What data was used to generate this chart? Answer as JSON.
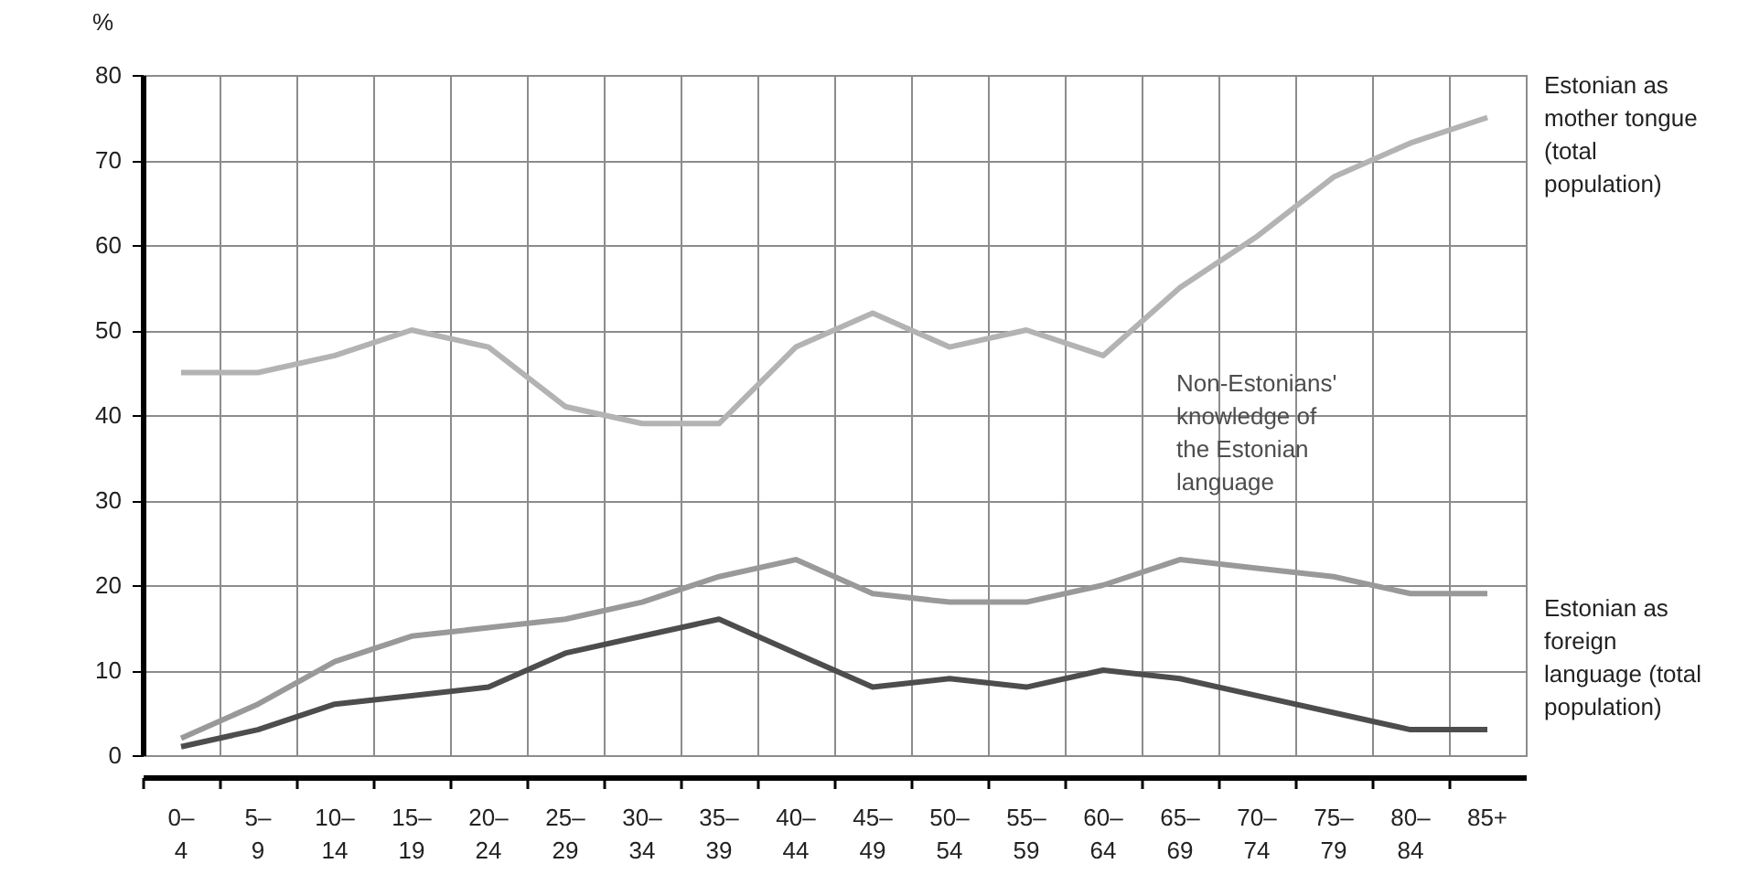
{
  "chart_data": {
    "type": "line",
    "ylabel": "%",
    "categories": [
      "0–4",
      "5–9",
      "10–14",
      "15–19",
      "20–24",
      "25–29",
      "30–34",
      "35–39",
      "40–44",
      "45–49",
      "50–54",
      "55–59",
      "60–64",
      "65–69",
      "70–74",
      "75–79",
      "80–84",
      "85+"
    ],
    "series": [
      {
        "name": "Estonian as mother tongue (total population)",
        "color": "#b3b3b3",
        "values": [
          45,
          45,
          47,
          50,
          48,
          41,
          39,
          39,
          48,
          52,
          48,
          50,
          47,
          55,
          61,
          68,
          72,
          75
        ]
      },
      {
        "name": "Estonian as foreign language (total population)",
        "color": "#999999",
        "values": [
          2,
          6,
          11,
          14,
          15,
          16,
          18,
          21,
          23,
          19,
          18,
          18,
          20,
          23,
          22,
          21,
          19,
          19
        ]
      },
      {
        "name": "Non-Estonians' knowledge of the Estonian language",
        "color": "#4d4d4d",
        "values": [
          1,
          3,
          6,
          7,
          8,
          12,
          14,
          16,
          12,
          8,
          9,
          8,
          10,
          9,
          7,
          5,
          3,
          3
        ]
      }
    ],
    "ylim": [
      0,
      80
    ],
    "yticks": [
      0,
      10,
      20,
      30,
      40,
      50,
      60,
      70,
      80
    ],
    "grid": true,
    "marker": "none",
    "line_style": "solid"
  }
}
